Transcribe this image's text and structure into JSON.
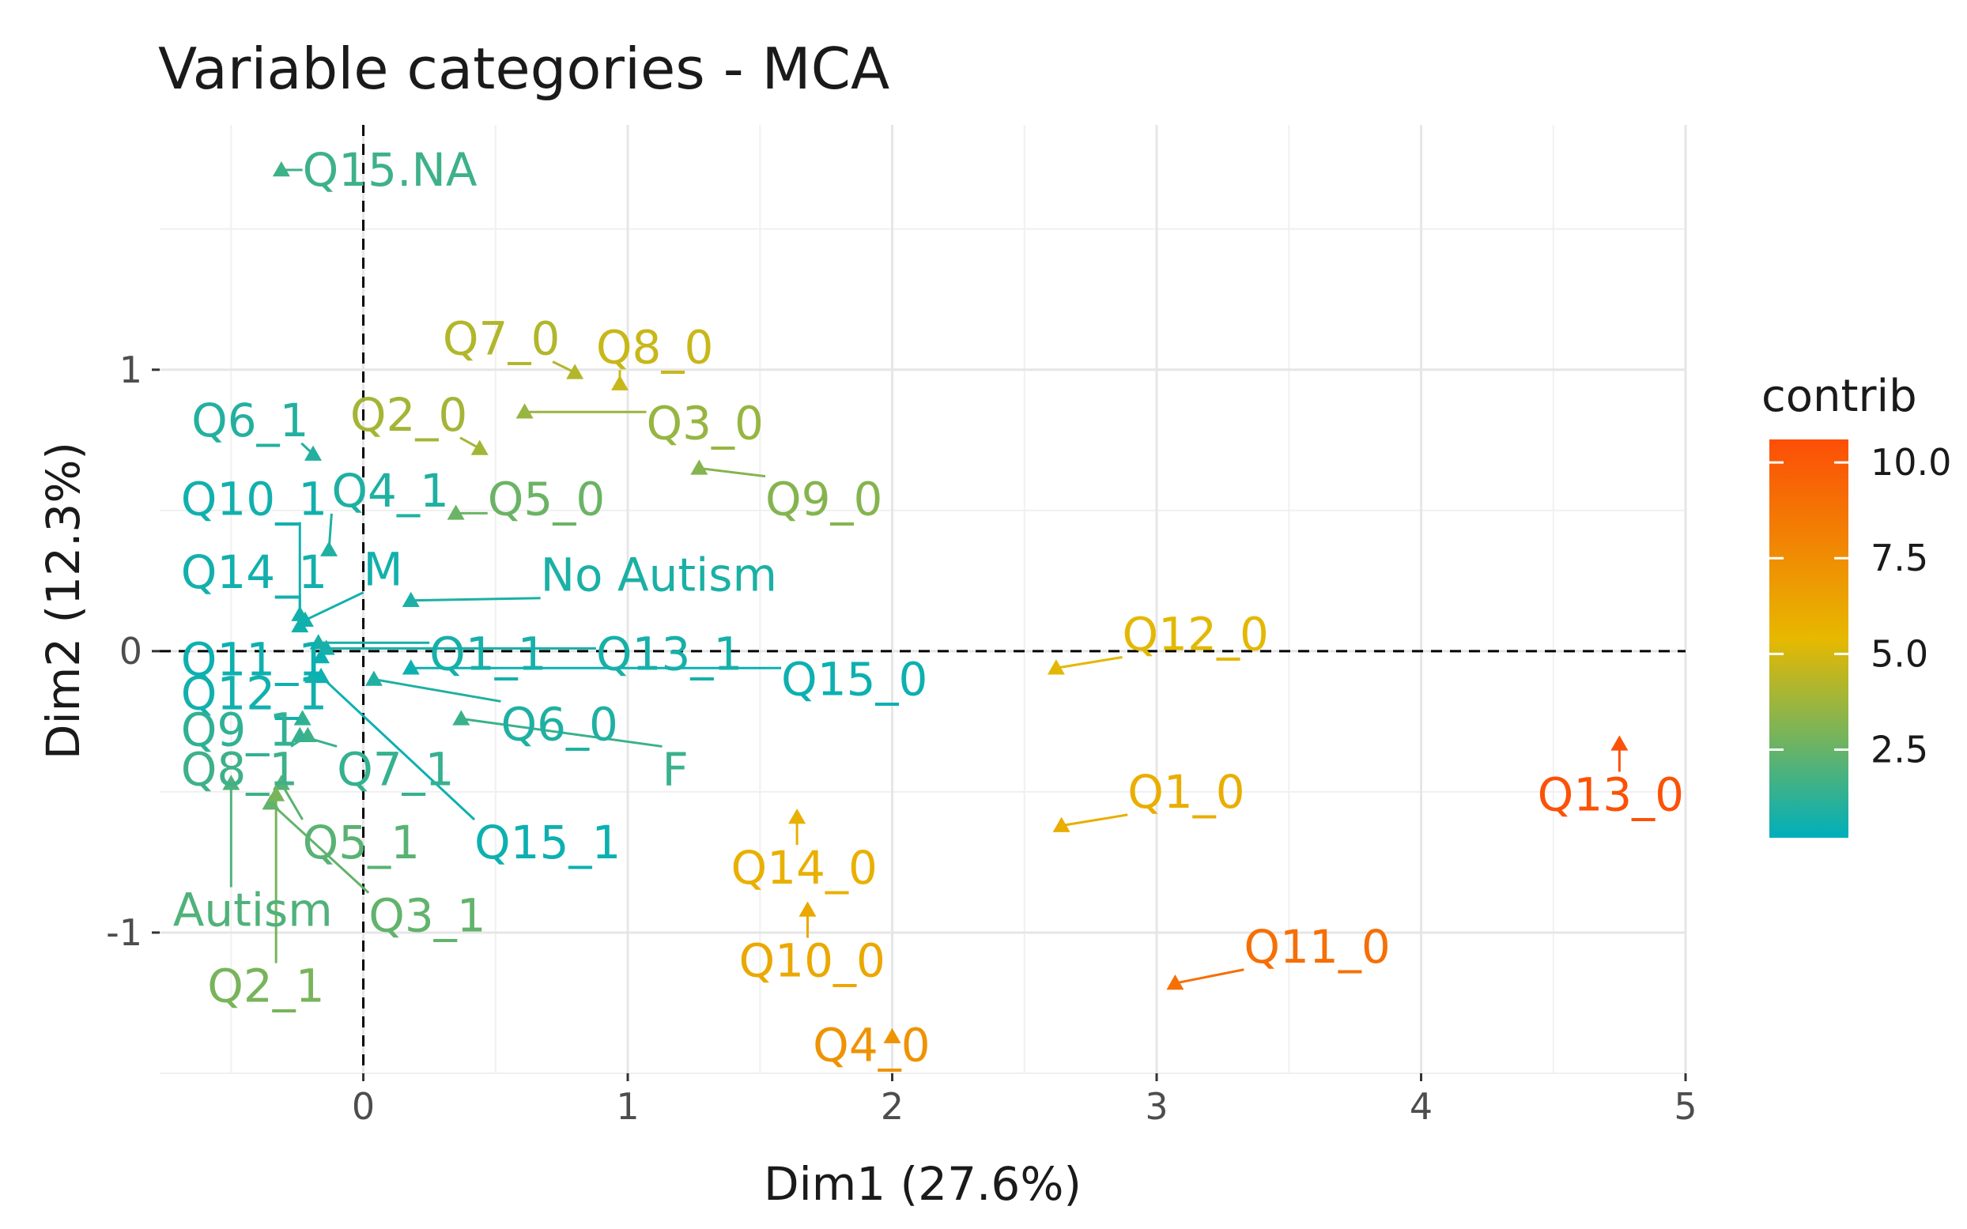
{
  "chart_data": {
    "type": "scatter",
    "title": "Variable categories - MCA",
    "xlabel": "Dim1 (27.6%)",
    "ylabel": "Dim2 (12.3%)",
    "xlim": [
      -0.77,
      5.0
    ],
    "ylim": [
      -1.5,
      1.87
    ],
    "xticks": [
      0,
      1,
      2,
      3,
      4,
      5
    ],
    "xtick_labels": [
      "0",
      "1",
      "2",
      "3",
      "4",
      "5"
    ],
    "yticks": [
      -1,
      0,
      1
    ],
    "ytick_labels": [
      "-1",
      "0",
      "1"
    ],
    "grid": true,
    "reference_lines": {
      "x": 0,
      "y": 0,
      "style": "dashed"
    },
    "legend": {
      "title": "contrib",
      "position": "right",
      "range": [
        0.2,
        10.6
      ],
      "ticks": [
        2.5,
        5.0,
        7.5,
        10.0
      ],
      "tick_labels": [
        "2.5",
        "5.0",
        "7.5",
        "10.0"
      ],
      "low_color": "#00AFBB",
      "mid_color": "#E7B800",
      "high_color": "#FC4E07"
    },
    "points": [
      {
        "name": "Q15.NA",
        "x": -0.31,
        "y": 1.71,
        "contrib": 1.6,
        "label": "Q15.NA",
        "lx": -0.23,
        "ly": 1.71
      },
      {
        "name": "Q7_0",
        "x": 0.8,
        "y": 0.99,
        "contrib": 4.2,
        "label": "Q7_0",
        "lx": 0.3,
        "ly": 1.11
      },
      {
        "name": "Q8_0",
        "x": 0.97,
        "y": 0.95,
        "contrib": 4.7,
        "label": "Q8_0",
        "lx": 0.88,
        "ly": 1.08
      },
      {
        "name": "Q3_0",
        "x": 0.61,
        "y": 0.85,
        "contrib": 3.6,
        "label": "Q3_0",
        "lx": 1.07,
        "ly": 0.81
      },
      {
        "name": "Q2_0",
        "x": 0.44,
        "y": 0.72,
        "contrib": 3.9,
        "label": "Q2_0",
        "lx": -0.05,
        "ly": 0.84
      },
      {
        "name": "Q9_0",
        "x": 1.27,
        "y": 0.65,
        "contrib": 3.2,
        "label": "Q9_0",
        "lx": 1.52,
        "ly": 0.54
      },
      {
        "name": "Q6_1",
        "x": -0.19,
        "y": 0.7,
        "contrib": 1.0,
        "label": "Q6_1",
        "lx": -0.65,
        "ly": 0.82
      },
      {
        "name": "Q4_1",
        "x": -0.13,
        "y": 0.36,
        "contrib": 0.9,
        "label": "Q4_1",
        "lx": -0.12,
        "ly": 0.57
      },
      {
        "name": "Q5_0",
        "x": 0.35,
        "y": 0.49,
        "contrib": 2.6,
        "label": "Q5_0",
        "lx": 0.47,
        "ly": 0.54
      },
      {
        "name": "Q10_1",
        "x": -0.24,
        "y": 0.09,
        "contrib": 0.6,
        "label": "Q10_1",
        "lx": -0.69,
        "ly": 0.54
      },
      {
        "name": "Q14_1",
        "x": -0.24,
        "y": 0.13,
        "contrib": 0.6,
        "label": "Q14_1",
        "lx": -0.69,
        "ly": 0.28
      },
      {
        "name": "M",
        "x": -0.22,
        "y": 0.11,
        "contrib": 0.6,
        "label": "M",
        "lx": 0.0,
        "ly": 0.29
      },
      {
        "name": "No Autism",
        "x": 0.18,
        "y": 0.18,
        "contrib": 0.8,
        "label": "No Autism",
        "lx": 0.67,
        "ly": 0.27
      },
      {
        "name": "Q1_1",
        "x": -0.17,
        "y": 0.03,
        "contrib": 0.7,
        "label": "Q1_1",
        "lx": 0.25,
        "ly": -0.01
      },
      {
        "name": "Q13_1",
        "x": -0.14,
        "y": 0.01,
        "contrib": 0.7,
        "label": "Q13_1",
        "lx": 0.88,
        "ly": -0.01
      },
      {
        "name": "Q11_1",
        "x": -0.16,
        "y": -0.02,
        "contrib": 0.5,
        "label": "Q11_1",
        "lx": -0.69,
        "ly": -0.03
      },
      {
        "name": "Q15_0",
        "x": 0.18,
        "y": -0.06,
        "contrib": 0.5,
        "label": "Q15_0",
        "lx": 1.58,
        "ly": -0.1
      },
      {
        "name": "Q12_1",
        "x": -0.19,
        "y": -0.09,
        "contrib": 0.6,
        "label": "Q12_1",
        "lx": -0.69,
        "ly": -0.15
      },
      {
        "name": "Q6_0",
        "x": 0.04,
        "y": -0.1,
        "contrib": 0.9,
        "label": "Q6_0",
        "lx": 0.52,
        "ly": -0.26
      },
      {
        "name": "F",
        "x": 0.37,
        "y": -0.24,
        "contrib": 1.5,
        "label": "F",
        "lx": 1.13,
        "ly": -0.42
      },
      {
        "name": "Q9_1",
        "x": -0.23,
        "y": -0.24,
        "contrib": 1.3,
        "label": "Q9_1",
        "lx": -0.69,
        "ly": -0.28
      },
      {
        "name": "Q8_1",
        "x": -0.21,
        "y": -0.3,
        "contrib": 1.6,
        "label": "Q8_1",
        "lx": -0.69,
        "ly": -0.42
      },
      {
        "name": "Q7_1",
        "x": -0.24,
        "y": -0.3,
        "contrib": 1.4,
        "label": "Q7_1",
        "lx": -0.1,
        "ly": -0.42
      },
      {
        "name": "Q5_1",
        "x": -0.31,
        "y": -0.47,
        "contrib": 2.2,
        "label": "Q5_1",
        "lx": -0.23,
        "ly": -0.68
      },
      {
        "name": "Q15_1",
        "x": -0.16,
        "y": -0.09,
        "contrib": 0.5,
        "label": "Q15_1",
        "lx": 0.42,
        "ly": -0.68
      },
      {
        "name": "Q3_1",
        "x": -0.35,
        "y": -0.54,
        "contrib": 2.4,
        "label": "Q3_1",
        "lx": 0.02,
        "ly": -0.94
      },
      {
        "name": "Autism",
        "x": -0.5,
        "y": -0.47,
        "contrib": 2.0,
        "label": "Autism",
        "lx": -0.72,
        "ly": -0.92
      },
      {
        "name": "Q2_1",
        "x": -0.33,
        "y": -0.51,
        "contrib": 2.9,
        "label": "Q2_1",
        "lx": -0.59,
        "ly": -1.19
      },
      {
        "name": "Q12_0",
        "x": 2.62,
        "y": -0.06,
        "contrib": 5.3,
        "label": "Q12_0",
        "lx": 2.87,
        "ly": 0.06
      },
      {
        "name": "Q1_0",
        "x": 2.64,
        "y": -0.62,
        "contrib": 5.9,
        "label": "Q1_0",
        "lx": 2.89,
        "ly": -0.5
      },
      {
        "name": "Q13_0",
        "x": 4.75,
        "y": -0.33,
        "contrib": 10.4,
        "label": "Q13_0",
        "lx": 4.44,
        "ly": -0.51
      },
      {
        "name": "Q14_0",
        "x": 1.64,
        "y": -0.59,
        "contrib": 5.8,
        "label": "Q14_0",
        "lx": 1.39,
        "ly": -0.77
      },
      {
        "name": "Q10_0",
        "x": 1.68,
        "y": -0.92,
        "contrib": 6.2,
        "label": "Q10_0",
        "lx": 1.42,
        "ly": -1.1
      },
      {
        "name": "Q11_0",
        "x": 3.07,
        "y": -1.18,
        "contrib": 9.0,
        "label": "Q11_0",
        "lx": 3.33,
        "ly": -1.05
      },
      {
        "name": "Q4_0",
        "x": 2.0,
        "y": -1.37,
        "contrib": 7.2,
        "label": "Q4_0",
        "lx": 1.7,
        "ly": -1.4
      }
    ]
  }
}
